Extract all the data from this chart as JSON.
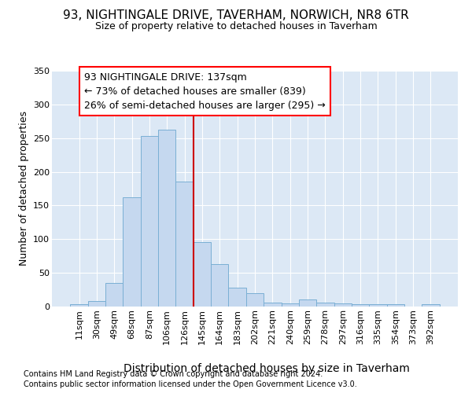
{
  "title1": "93, NIGHTINGALE DRIVE, TAVERHAM, NORWICH, NR8 6TR",
  "title2": "Size of property relative to detached houses in Taverham",
  "xlabel": "Distribution of detached houses by size in Taverham",
  "ylabel": "Number of detached properties",
  "footnote1": "Contains HM Land Registry data © Crown copyright and database right 2024.",
  "footnote2": "Contains public sector information licensed under the Open Government Licence v3.0.",
  "bin_labels": [
    "11sqm",
    "30sqm",
    "49sqm",
    "68sqm",
    "87sqm",
    "106sqm",
    "126sqm",
    "145sqm",
    "164sqm",
    "183sqm",
    "202sqm",
    "221sqm",
    "240sqm",
    "259sqm",
    "278sqm",
    "297sqm",
    "316sqm",
    "335sqm",
    "354sqm",
    "373sqm",
    "392sqm"
  ],
  "bar_values": [
    3,
    8,
    35,
    162,
    253,
    262,
    185,
    96,
    63,
    28,
    20,
    6,
    5,
    10,
    6,
    5,
    4,
    3,
    3,
    0,
    4
  ],
  "bar_color": "#c5d8ef",
  "bar_edge_color": "#7aafd4",
  "annotation_line1": "93 NIGHTINGALE DRIVE: 137sqm",
  "annotation_line2": "← 73% of detached houses are smaller (839)",
  "annotation_line3": "26% of semi-detached houses are larger (295) →",
  "vline_index": 6.5,
  "vline_color": "#cc0000",
  "ylim": [
    0,
    350
  ],
  "yticks": [
    0,
    50,
    100,
    150,
    200,
    250,
    300,
    350
  ],
  "plot_bg_color": "#dce8f5",
  "grid_color": "#ffffff",
  "title1_fontsize": 11,
  "title2_fontsize": 9,
  "ylabel_fontsize": 9,
  "xlabel_fontsize": 10,
  "annot_fontsize": 9,
  "tick_fontsize": 8,
  "footnote_fontsize": 7
}
